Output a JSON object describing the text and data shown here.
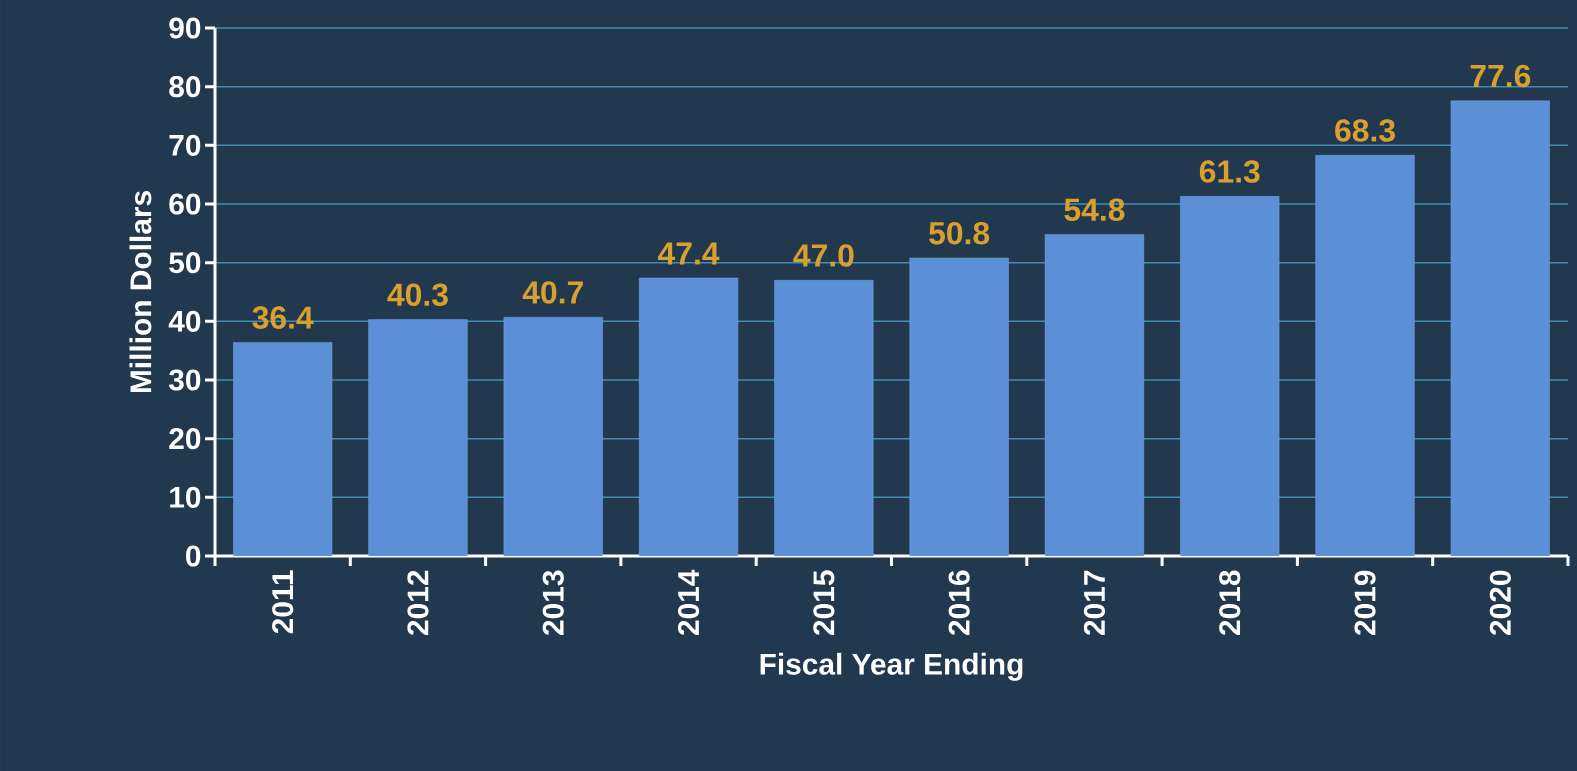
{
  "chart_data": {
    "type": "bar",
    "xlabel": "Fiscal Year Ending",
    "ylabel": "Million Dollars",
    "categories": [
      "2011",
      "2012",
      "2013",
      "2014",
      "2015",
      "2016",
      "2017",
      "2018",
      "2019",
      "2020"
    ],
    "values": [
      36.4,
      40.3,
      40.7,
      47.4,
      47.0,
      50.8,
      54.8,
      61.3,
      68.3,
      77.6
    ],
    "value_labels": [
      "36.4",
      "40.3",
      "40.7",
      "47.4",
      "47.0",
      "50.8",
      "54.8",
      "61.3",
      "68.3",
      "77.6"
    ],
    "color": "#5b8fd6",
    "ylim": [
      0,
      90
    ],
    "yticks": [
      0,
      10,
      20,
      30,
      40,
      50,
      60,
      70,
      80,
      90
    ],
    "grid": "y"
  }
}
